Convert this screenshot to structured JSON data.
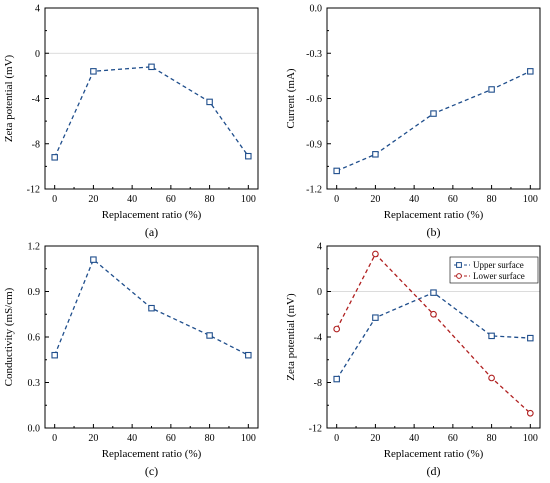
{
  "colors": {
    "blue": "#1f4e8c",
    "red": "#b02020",
    "zero_line": "#d0d0d0"
  },
  "chart_data": [
    {
      "panel": "(a)",
      "type": "line",
      "xlabel": "Replacement ratio (%)",
      "ylabel": "Zeta potential (mV)",
      "xlim": [
        -5,
        105
      ],
      "ylim": [
        -12,
        4
      ],
      "xticks": [
        "0",
        "20",
        "40",
        "60",
        "80",
        "100"
      ],
      "yticks": [
        "-12",
        "-8",
        "-4",
        "0",
        "4"
      ],
      "zero_line": true,
      "series": [
        {
          "x": [
            0,
            20,
            50,
            80,
            100
          ],
          "y": [
            -9.2,
            -1.6,
            -1.2,
            -4.3,
            -9.1
          ],
          "marker": "square",
          "color": "blue"
        }
      ]
    },
    {
      "panel": "(b)",
      "type": "line",
      "xlabel": "Replacement ratio (%)",
      "ylabel": "Current (mA)",
      "xlim": [
        -5,
        105
      ],
      "ylim": [
        -1.2,
        0.0
      ],
      "xticks": [
        "0",
        "20",
        "40",
        "60",
        "80",
        "100"
      ],
      "yticks": [
        "-1.2",
        "-0.9",
        "-0.6",
        "-0.3",
        "0.0"
      ],
      "zero_line": false,
      "series": [
        {
          "x": [
            0,
            20,
            50,
            80,
            100
          ],
          "y": [
            -1.08,
            -0.97,
            -0.7,
            -0.54,
            -0.42
          ],
          "marker": "square",
          "color": "blue"
        }
      ]
    },
    {
      "panel": "(c)",
      "type": "line",
      "xlabel": "Replacement ratio (%)",
      "ylabel": "Conductivity (mS/cm)",
      "xlim": [
        -5,
        105
      ],
      "ylim": [
        0.0,
        1.2
      ],
      "xticks": [
        "0",
        "20",
        "40",
        "60",
        "80",
        "100"
      ],
      "yticks": [
        "0.0",
        "0.3",
        "0.6",
        "0.9",
        "1.2"
      ],
      "zero_line": false,
      "series": [
        {
          "x": [
            0,
            20,
            50,
            80,
            100
          ],
          "y": [
            0.48,
            1.11,
            0.79,
            0.61,
            0.48
          ],
          "marker": "square",
          "color": "blue"
        }
      ]
    },
    {
      "panel": "(d)",
      "type": "line",
      "xlabel": "Replacement ratio (%)",
      "ylabel": "Zeta potential (mV)",
      "xlim": [
        -5,
        105
      ],
      "ylim": [
        -12,
        4
      ],
      "xticks": [
        "0",
        "20",
        "40",
        "60",
        "80",
        "100"
      ],
      "yticks": [
        "-12",
        "-8",
        "-4",
        "0",
        "4"
      ],
      "zero_line": true,
      "legend_position": "top-right",
      "series": [
        {
          "name": "Upper surface",
          "x": [
            0,
            20,
            50,
            80,
            100
          ],
          "y": [
            -7.7,
            -2.3,
            -0.1,
            -3.9,
            -4.1
          ],
          "marker": "square",
          "color": "blue"
        },
        {
          "name": "Lower surface",
          "x": [
            0,
            20,
            50,
            80,
            100
          ],
          "y": [
            -3.3,
            3.3,
            -2.0,
            -7.6,
            -10.7
          ],
          "marker": "circle",
          "color": "red"
        }
      ]
    }
  ]
}
